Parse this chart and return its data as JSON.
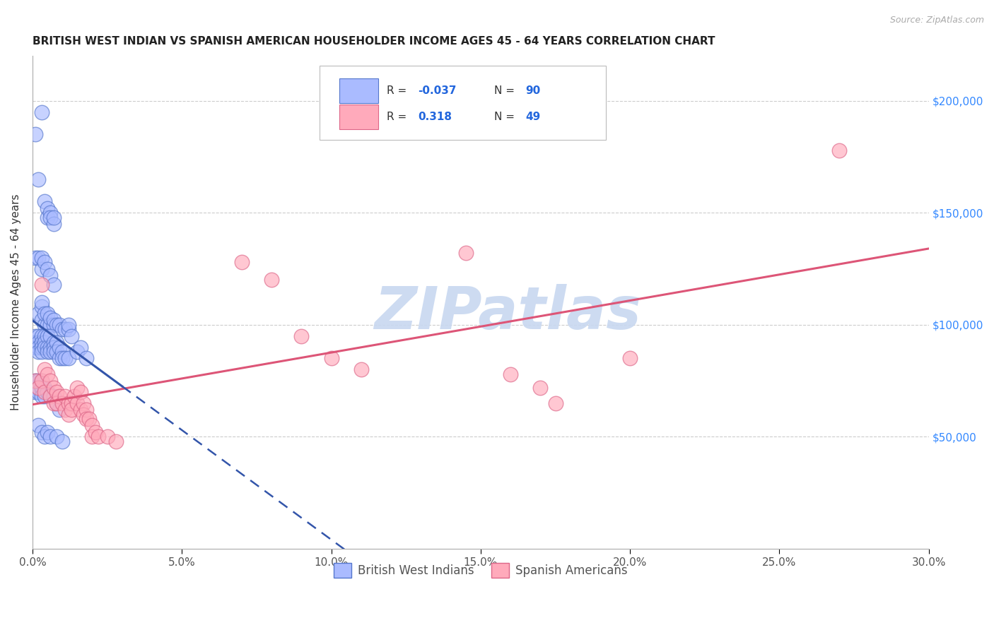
{
  "title": "BRITISH WEST INDIAN VS SPANISH AMERICAN HOUSEHOLDER INCOME AGES 45 - 64 YEARS CORRELATION CHART",
  "source": "Source: ZipAtlas.com",
  "ylabel": "Householder Income Ages 45 - 64 years",
  "xlabel_ticks": [
    "0.0%",
    "5.0%",
    "10.0%",
    "15.0%",
    "20.0%",
    "25.0%",
    "30.0%"
  ],
  "xlabel_vals": [
    0.0,
    0.05,
    0.1,
    0.15,
    0.2,
    0.25,
    0.3
  ],
  "right_ytick_labels": [
    "$50,000",
    "$100,000",
    "$150,000",
    "$200,000"
  ],
  "right_ytick_vals": [
    50000,
    100000,
    150000,
    200000
  ],
  "xlim": [
    0.0,
    0.3
  ],
  "ylim": [
    0,
    220000
  ],
  "bwi_color": "#aabbff",
  "sa_color": "#ffaabb",
  "bwi_edge_color": "#5577cc",
  "sa_edge_color": "#dd6688",
  "bwi_line_color": "#3355aa",
  "sa_line_color": "#dd5577",
  "watermark": "ZIPatlas",
  "watermark_color": "#c8d8f0",
  "bottom_legend": [
    "British West Indians",
    "Spanish Americans"
  ],
  "bwi_scatter": [
    [
      0.001,
      185000
    ],
    [
      0.002,
      165000
    ],
    [
      0.003,
      195000
    ],
    [
      0.004,
      155000
    ],
    [
      0.005,
      152000
    ],
    [
      0.005,
      148000
    ],
    [
      0.006,
      150000
    ],
    [
      0.006,
      148000
    ],
    [
      0.007,
      145000
    ],
    [
      0.007,
      148000
    ],
    [
      0.001,
      130000
    ],
    [
      0.002,
      130000
    ],
    [
      0.003,
      125000
    ],
    [
      0.003,
      130000
    ],
    [
      0.004,
      128000
    ],
    [
      0.005,
      125000
    ],
    [
      0.006,
      122000
    ],
    [
      0.007,
      118000
    ],
    [
      0.002,
      105000
    ],
    [
      0.003,
      108000
    ],
    [
      0.003,
      102000
    ],
    [
      0.003,
      110000
    ],
    [
      0.004,
      100000
    ],
    [
      0.004,
      105000
    ],
    [
      0.005,
      100000
    ],
    [
      0.005,
      105000
    ],
    [
      0.006,
      100000
    ],
    [
      0.006,
      103000
    ],
    [
      0.007,
      100000
    ],
    [
      0.007,
      102000
    ],
    [
      0.008,
      100000
    ],
    [
      0.009,
      100000
    ],
    [
      0.01,
      98000
    ],
    [
      0.011,
      98000
    ],
    [
      0.012,
      98000
    ],
    [
      0.012,
      100000
    ],
    [
      0.001,
      95000
    ],
    [
      0.001,
      92000
    ],
    [
      0.001,
      90000
    ],
    [
      0.002,
      95000
    ],
    [
      0.002,
      92000
    ],
    [
      0.002,
      90000
    ],
    [
      0.002,
      88000
    ],
    [
      0.003,
      95000
    ],
    [
      0.003,
      92000
    ],
    [
      0.003,
      90000
    ],
    [
      0.003,
      88000
    ],
    [
      0.004,
      95000
    ],
    [
      0.004,
      92000
    ],
    [
      0.004,
      90000
    ],
    [
      0.005,
      95000
    ],
    [
      0.005,
      90000
    ],
    [
      0.005,
      88000
    ],
    [
      0.006,
      95000
    ],
    [
      0.006,
      90000
    ],
    [
      0.006,
      88000
    ],
    [
      0.007,
      92000
    ],
    [
      0.007,
      90000
    ],
    [
      0.007,
      88000
    ],
    [
      0.008,
      92000
    ],
    [
      0.008,
      88000
    ],
    [
      0.009,
      90000
    ],
    [
      0.009,
      85000
    ],
    [
      0.01,
      88000
    ],
    [
      0.01,
      85000
    ],
    [
      0.011,
      85000
    ],
    [
      0.012,
      85000
    ],
    [
      0.001,
      75000
    ],
    [
      0.001,
      72000
    ],
    [
      0.001,
      70000
    ],
    [
      0.002,
      75000
    ],
    [
      0.002,
      72000
    ],
    [
      0.002,
      70000
    ],
    [
      0.003,
      75000
    ],
    [
      0.003,
      72000
    ],
    [
      0.003,
      68000
    ],
    [
      0.004,
      72000
    ],
    [
      0.004,
      68000
    ],
    [
      0.005,
      70000
    ],
    [
      0.006,
      68000
    ],
    [
      0.007,
      68000
    ],
    [
      0.008,
      65000
    ],
    [
      0.009,
      62000
    ],
    [
      0.002,
      55000
    ],
    [
      0.003,
      52000
    ],
    [
      0.004,
      50000
    ],
    [
      0.005,
      52000
    ],
    [
      0.006,
      50000
    ],
    [
      0.008,
      50000
    ],
    [
      0.01,
      48000
    ],
    [
      0.013,
      95000
    ],
    [
      0.015,
      88000
    ],
    [
      0.016,
      90000
    ],
    [
      0.018,
      85000
    ]
  ],
  "sa_scatter": [
    [
      0.001,
      75000
    ],
    [
      0.002,
      72000
    ],
    [
      0.003,
      75000
    ],
    [
      0.004,
      80000
    ],
    [
      0.004,
      70000
    ],
    [
      0.005,
      78000
    ],
    [
      0.006,
      75000
    ],
    [
      0.006,
      68000
    ],
    [
      0.007,
      72000
    ],
    [
      0.007,
      65000
    ],
    [
      0.008,
      70000
    ],
    [
      0.008,
      65000
    ],
    [
      0.009,
      68000
    ],
    [
      0.01,
      65000
    ],
    [
      0.011,
      68000
    ],
    [
      0.011,
      62000
    ],
    [
      0.012,
      65000
    ],
    [
      0.012,
      60000
    ],
    [
      0.013,
      65000
    ],
    [
      0.013,
      62000
    ],
    [
      0.014,
      68000
    ],
    [
      0.015,
      72000
    ],
    [
      0.015,
      65000
    ],
    [
      0.016,
      70000
    ],
    [
      0.016,
      62000
    ],
    [
      0.017,
      65000
    ],
    [
      0.017,
      60000
    ],
    [
      0.018,
      62000
    ],
    [
      0.018,
      58000
    ],
    [
      0.019,
      58000
    ],
    [
      0.02,
      55000
    ],
    [
      0.02,
      50000
    ],
    [
      0.021,
      52000
    ],
    [
      0.022,
      50000
    ],
    [
      0.025,
      50000
    ],
    [
      0.028,
      48000
    ],
    [
      0.003,
      118000
    ],
    [
      0.07,
      128000
    ],
    [
      0.08,
      120000
    ],
    [
      0.09,
      95000
    ],
    [
      0.1,
      85000
    ],
    [
      0.11,
      80000
    ],
    [
      0.145,
      132000
    ],
    [
      0.16,
      78000
    ],
    [
      0.17,
      72000
    ],
    [
      0.175,
      65000
    ],
    [
      0.2,
      85000
    ],
    [
      0.27,
      178000
    ]
  ]
}
